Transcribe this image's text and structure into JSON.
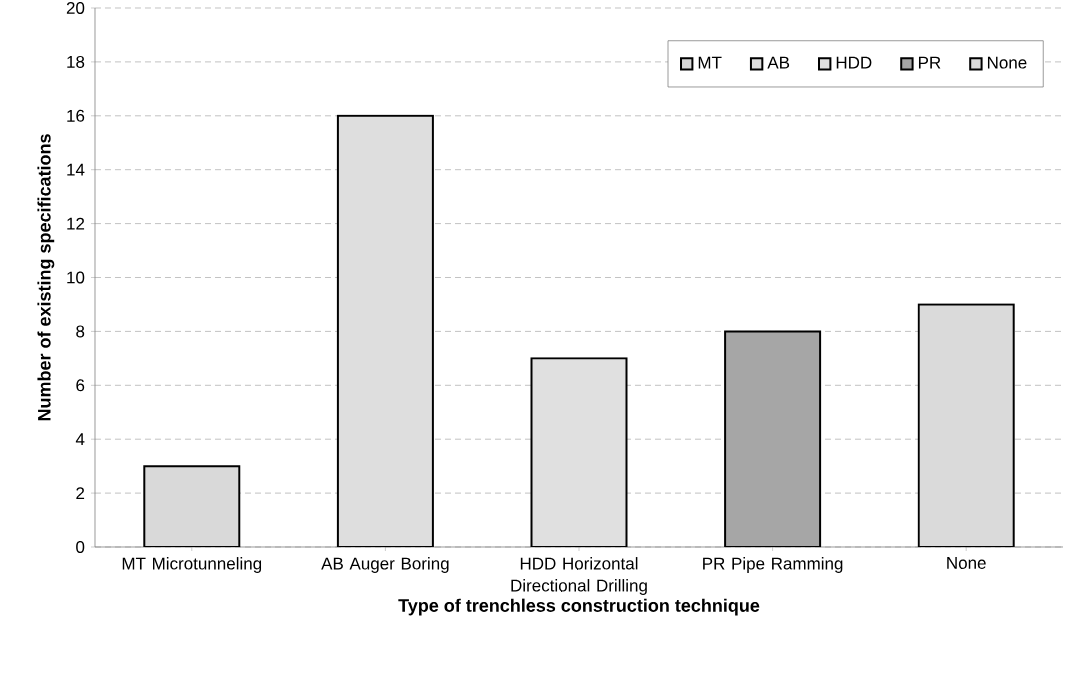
{
  "chart_data": {
    "type": "bar",
    "xlabel": "Type of trenchless construction technique",
    "ylabel": "Number of existing specifications",
    "categories": [
      "MT Microtunneling",
      "AB Auger Boring",
      "HDD Horizontal Directional Drilling",
      "PR Pipe Ramming",
      "None"
    ],
    "series": [
      {
        "name": "MT",
        "color": "#d9d9d9",
        "values": [
          3,
          null,
          null,
          null,
          null
        ]
      },
      {
        "name": "AB",
        "color": "#dedede",
        "values": [
          null,
          16,
          null,
          null,
          null
        ]
      },
      {
        "name": "HDD",
        "color": "#e0e0e0",
        "values": [
          null,
          null,
          7,
          null,
          null
        ]
      },
      {
        "name": "PR",
        "color": "#a6a6a6",
        "values": [
          null,
          null,
          null,
          8,
          null
        ]
      },
      {
        "name": "None",
        "color": "#dadada",
        "values": [
          null,
          null,
          null,
          null,
          9
        ]
      }
    ],
    "ylim": [
      0,
      20
    ],
    "yticks": [
      0,
      2,
      4,
      6,
      8,
      10,
      12,
      14,
      16,
      18,
      20
    ],
    "grid": "y",
    "legend": "top right"
  }
}
